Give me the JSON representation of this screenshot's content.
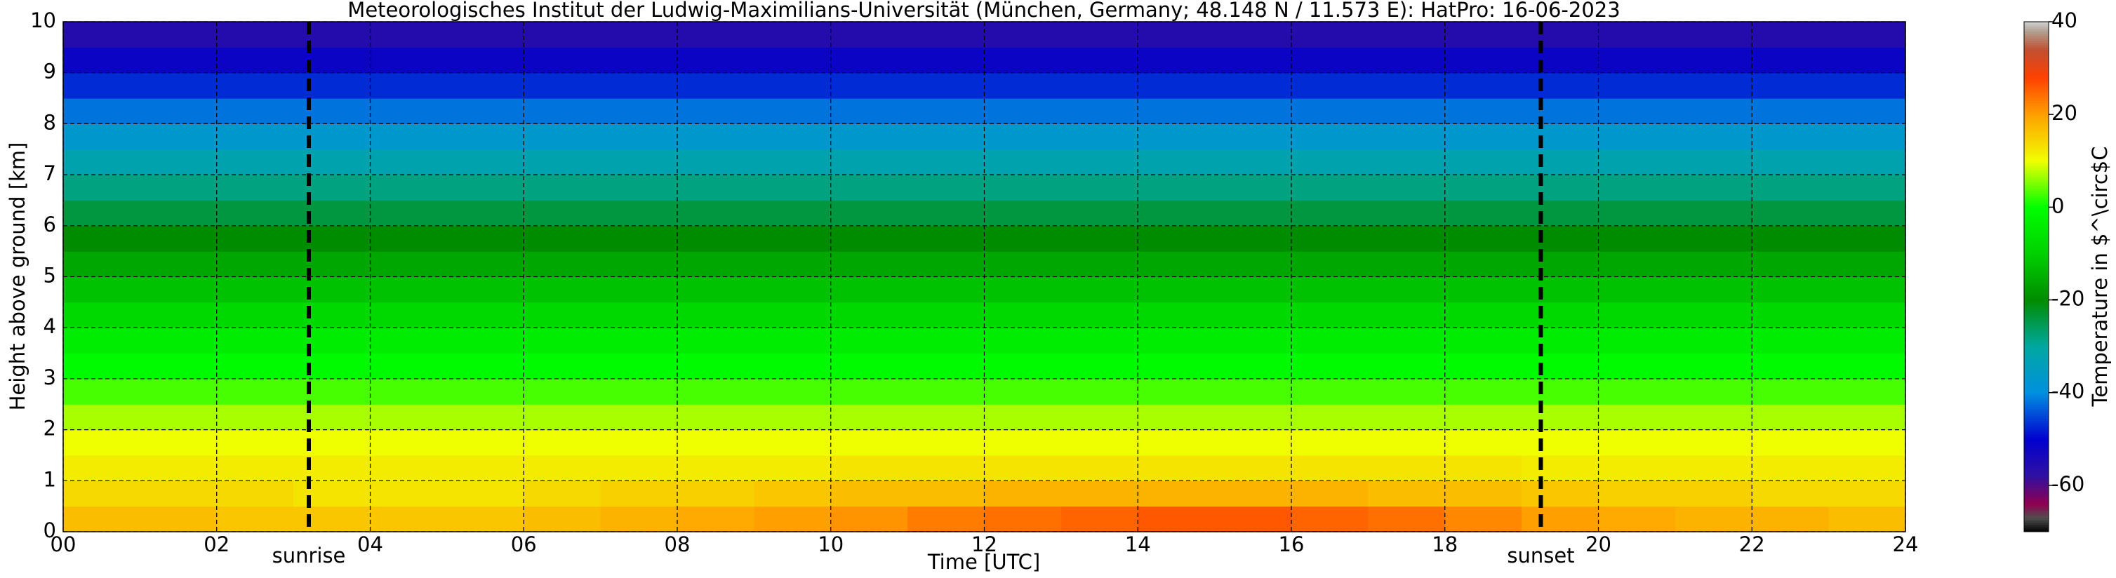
{
  "chart_data": {
    "type": "heatmap",
    "title": "Meteorologisches Institut der Ludwig-Maximilians-Universität (München, Germany; 48.148 N / 11.573 E):    HatPro: 16-06-2023",
    "xlabel": "Time [UTC]",
    "ylabel": "Height above ground [km]",
    "colorbar_label": "Temperature in $^\\circ$C",
    "x_edges": [
      0,
      1,
      2,
      3,
      4,
      5,
      6,
      7,
      8,
      9,
      10,
      11,
      12,
      13,
      14,
      15,
      16,
      17,
      18,
      19,
      20,
      21,
      22,
      23,
      24
    ],
    "y_edges": [
      0,
      0.5,
      1,
      1.5,
      2,
      2.5,
      3,
      3.5,
      4,
      4.5,
      5,
      5.5,
      6,
      6.5,
      7,
      7.5,
      8,
      8.5,
      9,
      9.5,
      10
    ],
    "z": [
      [
        17,
        17,
        16,
        16,
        16,
        16,
        17,
        18,
        19,
        20,
        21,
        23,
        24,
        25,
        26,
        26,
        25,
        24,
        22,
        20,
        19,
        18,
        18,
        17
      ],
      [
        14,
        14,
        14,
        13,
        13,
        13,
        14,
        15,
        15,
        16,
        17,
        17,
        18,
        18,
        18,
        18,
        18,
        17,
        17,
        16,
        15,
        15,
        14,
        14
      ],
      [
        12,
        12,
        12,
        12,
        12,
        12,
        12,
        12,
        12,
        12,
        13,
        13,
        13,
        13,
        13,
        13,
        13,
        13,
        13,
        12,
        12,
        12,
        12,
        12
      ],
      [
        10,
        10,
        10,
        10,
        10,
        10,
        10,
        10,
        10,
        10,
        10,
        10,
        10,
        10,
        10,
        10,
        10,
        10,
        10,
        10,
        10,
        10,
        10,
        10
      ],
      [
        7,
        7,
        7,
        7,
        7,
        7,
        7,
        7,
        7,
        7,
        7,
        7,
        7,
        7,
        7,
        7,
        7,
        7,
        7,
        7,
        7,
        7,
        7,
        7
      ],
      [
        3,
        3,
        3,
        3,
        3,
        3,
        3,
        3,
        3,
        3,
        3,
        3,
        3,
        3,
        3,
        3,
        3,
        3,
        3,
        3,
        3,
        3,
        3,
        3
      ],
      [
        -1,
        -1,
        -1,
        -1,
        -1,
        -1,
        -1,
        -1,
        -1,
        -1,
        -1,
        -1,
        -1,
        -1,
        -1,
        -1,
        -1,
        -1,
        -1,
        -1,
        -1,
        -1,
        -1,
        -1
      ],
      [
        -4,
        -4,
        -4,
        -4,
        -4,
        -4,
        -4,
        -4,
        -4,
        -4,
        -4,
        -4,
        -4,
        -4,
        -4,
        -4,
        -4,
        -4,
        -4,
        -4,
        -4,
        -4,
        -4,
        -4
      ],
      [
        -8,
        -8,
        -8,
        -8,
        -8,
        -8,
        -8,
        -8,
        -8,
        -8,
        -8,
        -8,
        -8,
        -8,
        -8,
        -8,
        -8,
        -8,
        -8,
        -8,
        -8,
        -8,
        -8,
        -8
      ],
      [
        -12,
        -12,
        -12,
        -12,
        -12,
        -12,
        -12,
        -12,
        -12,
        -12,
        -12,
        -12,
        -12,
        -12,
        -12,
        -12,
        -12,
        -12,
        -12,
        -12,
        -12,
        -12,
        -12,
        -12
      ],
      [
        -16,
        -16,
        -16,
        -16,
        -16,
        -16,
        -16,
        -16,
        -16,
        -16,
        -16,
        -16,
        -16,
        -16,
        -16,
        -16,
        -16,
        -16,
        -16,
        -16,
        -16,
        -16,
        -16,
        -16
      ],
      [
        -20,
        -20,
        -20,
        -20,
        -20,
        -20,
        -20,
        -20,
        -20,
        -20,
        -20,
        -20,
        -20,
        -20,
        -20,
        -20,
        -20,
        -20,
        -20,
        -20,
        -20,
        -20,
        -20,
        -20
      ],
      [
        -24,
        -24,
        -24,
        -24,
        -24,
        -24,
        -24,
        -24,
        -24,
        -24,
        -24,
        -24,
        -24,
        -24,
        -24,
        -24,
        -24,
        -24,
        -24,
        -24,
        -24,
        -24,
        -24,
        -24
      ],
      [
        -28,
        -28,
        -28,
        -28,
        -28,
        -28,
        -28,
        -28,
        -28,
        -28,
        -28,
        -28,
        -28,
        -28,
        -28,
        -28,
        -28,
        -28,
        -28,
        -28,
        -28,
        -28,
        -28,
        -28
      ],
      [
        -32,
        -32,
        -32,
        -32,
        -32,
        -32,
        -32,
        -32,
        -32,
        -32,
        -32,
        -32,
        -32,
        -32,
        -32,
        -32,
        -32,
        -32,
        -32,
        -32,
        -32,
        -32,
        -32,
        -32
      ],
      [
        -37,
        -37,
        -37,
        -37,
        -37,
        -37,
        -37,
        -37,
        -37,
        -37,
        -37,
        -37,
        -37,
        -37,
        -37,
        -37,
        -37,
        -37,
        -37,
        -37,
        -37,
        -37,
        -37,
        -37
      ],
      [
        -42,
        -42,
        -42,
        -42,
        -42,
        -42,
        -42,
        -42,
        -42,
        -42,
        -42,
        -42,
        -42,
        -42,
        -42,
        -42,
        -42,
        -42,
        -42,
        -42,
        -42,
        -42,
        -42,
        -42
      ],
      [
        -47,
        -47,
        -47,
        -47,
        -47,
        -47,
        -47,
        -47,
        -47,
        -47,
        -47,
        -47,
        -47,
        -47,
        -47,
        -47,
        -47,
        -47,
        -47,
        -47,
        -47,
        -47,
        -47,
        -47
      ],
      [
        -52,
        -52,
        -52,
        -52,
        -52,
        -52,
        -52,
        -52,
        -52,
        -52,
        -52,
        -52,
        -52,
        -52,
        -52,
        -52,
        -52,
        -52,
        -52,
        -52,
        -52,
        -52,
        -52,
        -52
      ],
      [
        -56,
        -56,
        -56,
        -56,
        -56,
        -56,
        -56,
        -56,
        -56,
        -56,
        -56,
        -56,
        -56,
        -56,
        -56,
        -56,
        -56,
        -56,
        -56,
        -56,
        -56,
        -56,
        -56,
        -56
      ]
    ],
    "xlim": [
      0,
      24
    ],
    "xticks": [
      {
        "value": 0,
        "label": "00"
      },
      {
        "value": 2,
        "label": "02"
      },
      {
        "value": 4,
        "label": "04"
      },
      {
        "value": 6,
        "label": "06"
      },
      {
        "value": 8,
        "label": "08"
      },
      {
        "value": 10,
        "label": "10"
      },
      {
        "value": 12,
        "label": "12"
      },
      {
        "value": 14,
        "label": "14"
      },
      {
        "value": 16,
        "label": "16"
      },
      {
        "value": 18,
        "label": "18"
      },
      {
        "value": 20,
        "label": "20"
      },
      {
        "value": 22,
        "label": "22"
      },
      {
        "value": 24,
        "label": "24"
      }
    ],
    "ylim": [
      0,
      10
    ],
    "yticks": [
      0,
      1,
      2,
      3,
      4,
      5,
      6,
      7,
      8,
      9,
      10
    ],
    "grid": true,
    "clim": [
      -70,
      40
    ],
    "cticks": [
      -60,
      -40,
      -20,
      0,
      20,
      40
    ],
    "colormap": [
      {
        "value": -70,
        "color": "#000000"
      },
      {
        "value": -67,
        "color": "#505050"
      },
      {
        "value": -64,
        "color": "#900050"
      },
      {
        "value": -58,
        "color": "#3010a0"
      },
      {
        "value": -50,
        "color": "#0000d0"
      },
      {
        "value": -40,
        "color": "#0090e0"
      },
      {
        "value": -30,
        "color": "#00a8a0"
      },
      {
        "value": -20,
        "color": "#008c00"
      },
      {
        "value": -10,
        "color": "#00d000"
      },
      {
        "value": 0,
        "color": "#00ff00"
      },
      {
        "value": 10,
        "color": "#f0ff00"
      },
      {
        "value": 20,
        "color": "#ffa000"
      },
      {
        "value": 28,
        "color": "#ff4000"
      },
      {
        "value": 34,
        "color": "#c05030"
      },
      {
        "value": 38,
        "color": "#b0a090"
      },
      {
        "value": 40,
        "color": "#d0d0d0"
      }
    ],
    "annotations": [
      {
        "text": "sunrise",
        "x": 3.2
      },
      {
        "text": "sunset",
        "x": 19.25
      }
    ]
  }
}
